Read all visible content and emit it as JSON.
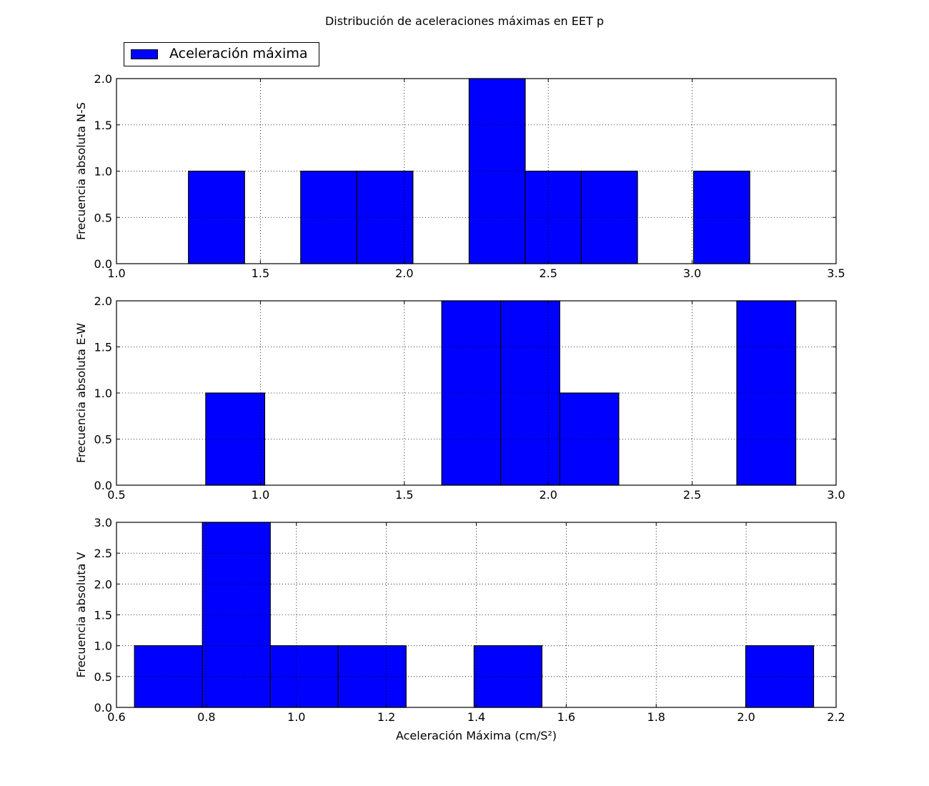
{
  "title": "Distribución de aceleraciones máximas en EET p",
  "legend": {
    "label": "Aceleración máxima",
    "placement": "upper-left, above plots"
  },
  "colors": {
    "bar_fill": "#0000ff",
    "bar_edge": "#000000",
    "grid": "#000000"
  },
  "chart_data": [
    {
      "type": "bar",
      "histogram": true,
      "ylabel": "Frecuencia absoluta N-S",
      "xlabel": "",
      "xlim": [
        1.0,
        3.5
      ],
      "ylim": [
        0.0,
        2.0
      ],
      "xticks": [
        "1.0",
        "1.5",
        "2.0",
        "2.5",
        "3.0",
        "3.5"
      ],
      "yticks": [
        "0.0",
        "0.5",
        "1.0",
        "1.5",
        "2.0"
      ],
      "grid": true,
      "bin_edges": [
        1.25,
        1.445,
        1.64,
        1.835,
        2.03,
        2.225,
        2.42,
        2.615,
        2.81,
        3.005,
        3.2
      ],
      "values": [
        1,
        0,
        1,
        1,
        0,
        2,
        1,
        1,
        0,
        1
      ]
    },
    {
      "type": "bar",
      "histogram": true,
      "ylabel": "Frecuencia absoluta E-W",
      "xlabel": "",
      "xlim": [
        0.5,
        3.0
      ],
      "ylim": [
        0.0,
        2.0
      ],
      "xticks": [
        "0.5",
        "1.0",
        "1.5",
        "2.0",
        "2.5",
        "3.0"
      ],
      "yticks": [
        "0.0",
        "0.5",
        "1.0",
        "1.5",
        "2.0"
      ],
      "grid": true,
      "bin_edges": [
        0.81,
        1.015,
        1.22,
        1.425,
        1.63,
        1.835,
        2.04,
        2.245,
        2.45,
        2.655,
        2.86
      ],
      "values": [
        1,
        0,
        0,
        0,
        2,
        2,
        1,
        0,
        0,
        2
      ]
    },
    {
      "type": "bar",
      "histogram": true,
      "ylabel": "Frecuencia absoluta V",
      "xlabel": "Aceleración Máxima (cm/S²)",
      "xlim": [
        0.6,
        2.2
      ],
      "ylim": [
        0.0,
        3.0
      ],
      "xticks": [
        "0.6",
        "0.8",
        "1.0",
        "1.2",
        "1.4",
        "1.6",
        "1.8",
        "2.0",
        "2.2"
      ],
      "yticks": [
        "0.0",
        "0.5",
        "1.0",
        "1.5",
        "2.0",
        "2.5",
        "3.0"
      ],
      "grid": true,
      "bin_edges": [
        0.64,
        0.791,
        0.942,
        1.093,
        1.244,
        1.395,
        1.546,
        1.697,
        1.848,
        1.999,
        2.15
      ],
      "values": [
        1,
        3,
        1,
        1,
        0,
        1,
        0,
        0,
        0,
        1
      ]
    }
  ]
}
